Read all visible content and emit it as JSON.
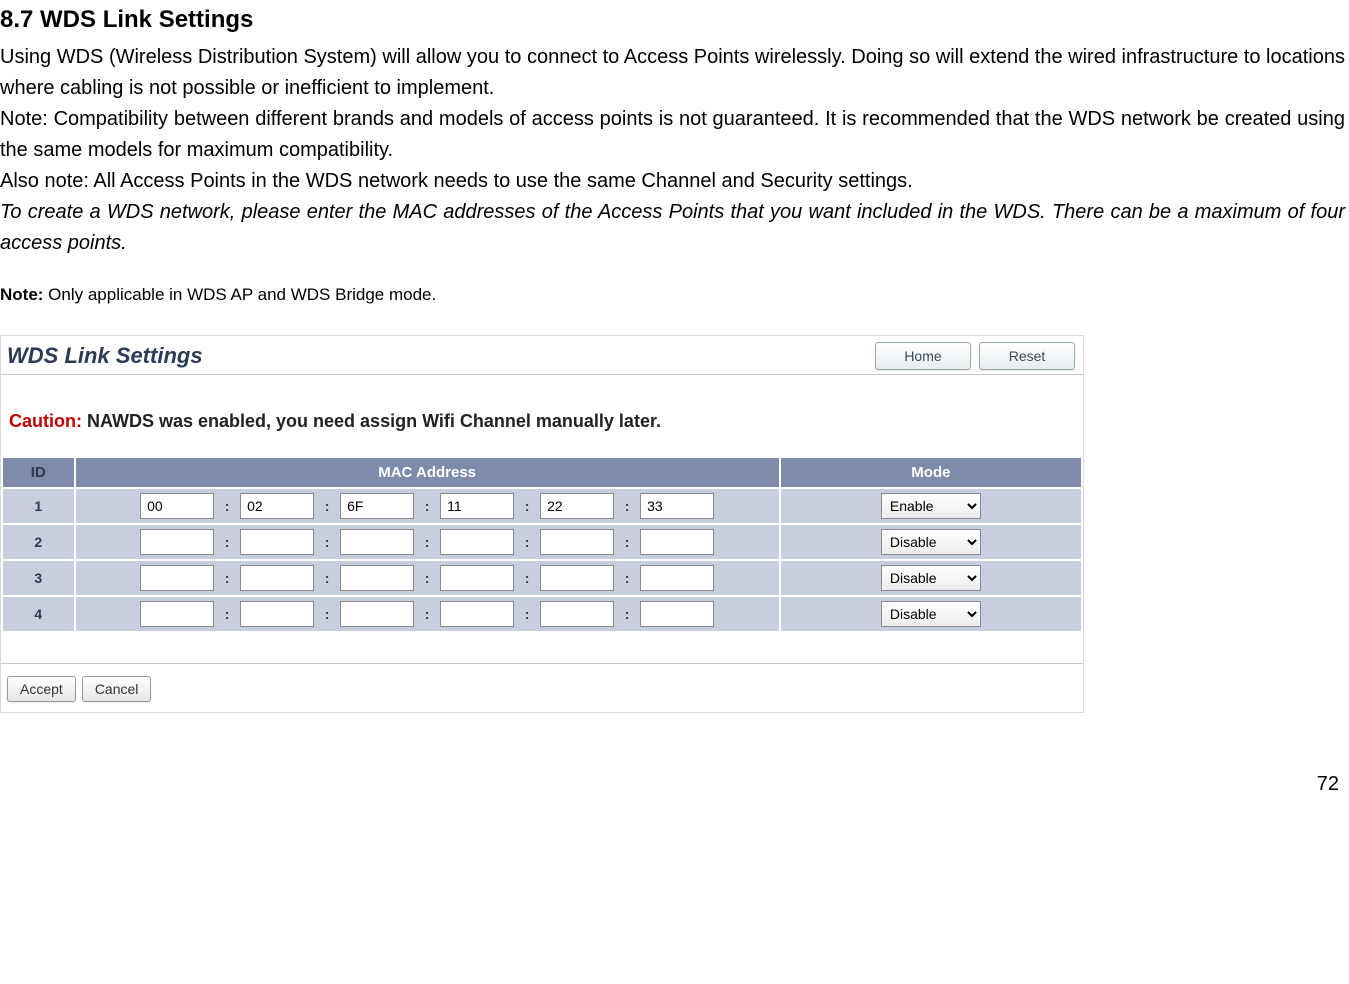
{
  "doc": {
    "heading": "8.7   WDS Link Settings",
    "p1": "Using WDS (Wireless Distribution System) will allow you to connect to Access Points wirelessly. Doing so will extend the wired infrastructure to locations where cabling is not possible or inefficient to implement.",
    "p2": "Note: Compatibility between different brands and models of access points is not guaranteed. It is recommended that the WDS network be created using the same models for maximum compatibility.",
    "p3": "Also note: All Access Points in the WDS network needs to use the same Channel and Security settings.",
    "p4": "To create a WDS network, please enter the MAC addresses of the Access Points that you want included in the WDS. There can be a maximum of four access points.",
    "note_label": "Note:",
    "note_text": " Only applicable in WDS AP and WDS Bridge mode.",
    "page_number": "72"
  },
  "panel": {
    "title": "WDS Link Settings",
    "home_btn": "Home",
    "reset_btn": "Reset",
    "caution_label": "Caution:",
    "caution_text": "  NAWDS was enabled, you need assign Wifi Channel manually later.",
    "headers": {
      "id": "ID",
      "mac": "MAC Address",
      "mode": "Mode"
    },
    "rows": [
      {
        "id": "1",
        "mac": [
          "00",
          "02",
          "6F",
          "11",
          "22",
          "33"
        ],
        "mode": "Enable"
      },
      {
        "id": "2",
        "mac": [
          "",
          "",
          "",
          "",
          "",
          ""
        ],
        "mode": "Disable"
      },
      {
        "id": "3",
        "mac": [
          "",
          "",
          "",
          "",
          "",
          ""
        ],
        "mode": "Disable"
      },
      {
        "id": "4",
        "mac": [
          "",
          "",
          "",
          "",
          "",
          ""
        ],
        "mode": "Disable"
      }
    ],
    "mode_options": [
      "Enable",
      "Disable"
    ],
    "accept_btn": "Accept",
    "cancel_btn": "Cancel"
  },
  "style": {
    "header_bg": "#7f8ba9",
    "row_bg": "#c7cfdf",
    "caution_color": "#c00000",
    "title_color": "#2b3a55"
  }
}
